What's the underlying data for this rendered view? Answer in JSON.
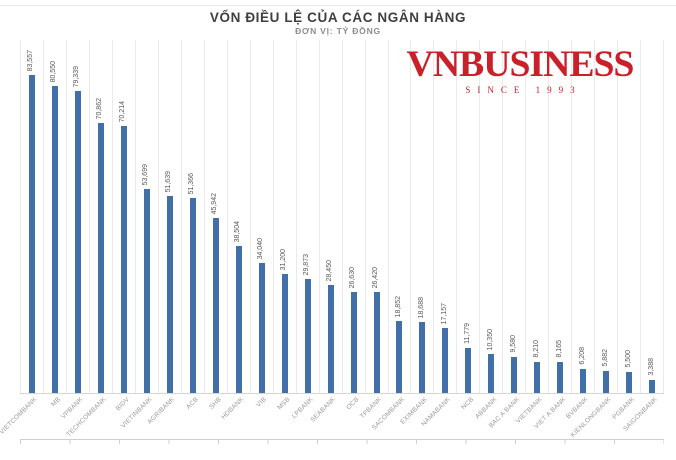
{
  "header": {
    "title": "VỐN ĐIỀU LỆ CỦA CÁC NGÂN HÀNG",
    "subtitle": "ĐƠN VỊ: TỶ ĐỒNG"
  },
  "logo": {
    "text": "VNBUSINESS",
    "tagline": "SINCE 1993",
    "color": "#c9202a"
  },
  "chart_data": {
    "type": "bar",
    "title": "VỐN ĐIỀU LỆ CỦA CÁC NGÂN HÀNG",
    "subtitle": "ĐƠN VỊ: TỶ ĐỒNG",
    "unit": "tỷ đồng",
    "ylabel": "",
    "xlabel": "",
    "ylim": [
      0,
      90000
    ],
    "legend": "none",
    "grid": "vertical-category-lines",
    "bar_color": "#4170a8",
    "gridline_color": "#eaeaea",
    "categories": [
      "VIETCOMBANK",
      "MB",
      "VPBANK",
      "TECHCOMBANK",
      "BIDV",
      "VIETINBANK",
      "AGRIBANK",
      "ACB",
      "SHB",
      "HDBANK",
      "VIB",
      "MSB",
      "LPBANK",
      "SEABANK",
      "OCB",
      "TPBANK",
      "SACOMBANK",
      "EXIMBANK",
      "NAMABANK",
      "NCB",
      "ABBANK",
      "BAC A BANK",
      "VIETBANK",
      "VIET A BANK",
      "BVBANK",
      "KIENLONGBANK",
      "PGBANK",
      "SAIGONBANK"
    ],
    "values": [
      83557,
      80550,
      79339,
      70862,
      70214,
      53699,
      51639,
      51366,
      45942,
      38504,
      34040,
      31200,
      29873,
      28450,
      26630,
      26420,
      18852,
      18688,
      17157,
      11779,
      10350,
      9580,
      8210,
      8165,
      6208,
      5882,
      5500,
      3388
    ],
    "value_labels": [
      "83,557",
      "80,550",
      "79,339",
      "70,862",
      "70,214",
      "53,699",
      "51,639",
      "51,366",
      "45,942",
      "38,504",
      "34,040",
      "31,200",
      "29,873",
      "28,450",
      "26,630",
      "26,420",
      "18,852",
      "18,688",
      "17,157",
      "11,779",
      "10,350",
      "9,580",
      "8,210",
      "8,165",
      "6,208",
      "5,882",
      "5,500",
      "3,388"
    ]
  }
}
